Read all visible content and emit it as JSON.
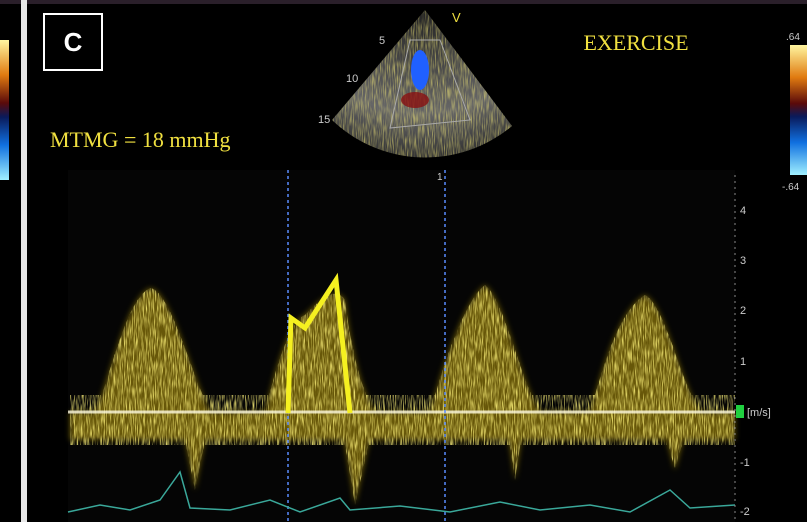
{
  "panel_label": "C",
  "title": "EXERCISE",
  "measurement": "MTMG = 18 mmHg",
  "sector": {
    "marker": "V",
    "depths": [
      "5",
      "10",
      "15"
    ]
  },
  "velocity_scale": {
    "ticks": [
      "4",
      "3",
      "2",
      "1",
      "[m/s]",
      "-1",
      "-2"
    ]
  },
  "color_scale": {
    "top": ".64",
    "bottom": "-.64"
  },
  "cursor_label": "1"
}
